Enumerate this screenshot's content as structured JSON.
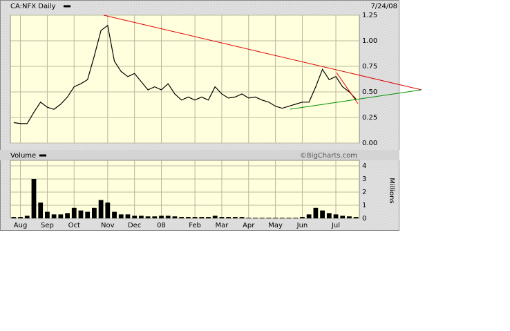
{
  "chart_data": [
    {
      "type": "line",
      "title": "CA:NFX Daily",
      "date": "7/24/08",
      "color": "#000000",
      "values": [
        0.2,
        0.19,
        0.19,
        0.3,
        0.4,
        0.35,
        0.33,
        0.38,
        0.45,
        0.55,
        0.58,
        0.62,
        0.85,
        1.1,
        1.15,
        0.8,
        0.7,
        0.65,
        0.68,
        0.6,
        0.52,
        0.55,
        0.52,
        0.58,
        0.48,
        0.42,
        0.45,
        0.42,
        0.45,
        0.42,
        0.55,
        0.48,
        0.44,
        0.45,
        0.48,
        0.44,
        0.45,
        0.42,
        0.4,
        0.36,
        0.34,
        0.36,
        0.38,
        0.4,
        0.4,
        0.55,
        0.72,
        0.62,
        0.65,
        0.55,
        0.5,
        0.43
      ],
      "ylim": [
        0,
        1.25
      ],
      "yticks": [
        {
          "value": 0,
          "label": "0.00"
        },
        {
          "value": 0.25,
          "label": "0.25"
        },
        {
          "value": 0.5,
          "label": "0.50"
        },
        {
          "value": 0.75,
          "label": "0.75"
        },
        {
          "value": 1,
          "label": "1.00"
        },
        {
          "value": 1.25,
          "label": "1.25"
        }
      ],
      "grid": true
    },
    {
      "type": "bar",
      "title": "Volume",
      "source": "©BigCharts.com",
      "y_label": "Millions",
      "color": "#000000",
      "categories": [
        null,
        "Aug",
        null,
        null,
        null,
        "Sep",
        null,
        null,
        null,
        "Oct",
        null,
        null,
        null,
        null,
        "Nov",
        null,
        null,
        null,
        "Dec",
        null,
        null,
        null,
        "08",
        null,
        null,
        null,
        null,
        "Feb",
        null,
        null,
        null,
        "Mar",
        null,
        null,
        null,
        "Apr",
        null,
        null,
        null,
        "May",
        null,
        null,
        null,
        "Jun",
        null,
        null,
        null,
        null,
        "Jul",
        null,
        null,
        null
      ],
      "values": [
        0.1,
        0.1,
        0.2,
        3.0,
        1.2,
        0.5,
        0.3,
        0.3,
        0.4,
        0.8,
        0.6,
        0.5,
        0.8,
        1.4,
        1.2,
        0.5,
        0.3,
        0.3,
        0.2,
        0.2,
        0.15,
        0.15,
        0.2,
        0.2,
        0.15,
        0.1,
        0.1,
        0.1,
        0.1,
        0.1,
        0.2,
        0.1,
        0.1,
        0.1,
        0.1,
        0.05,
        0.05,
        0.05,
        0.05,
        0.05,
        0.05,
        0.05,
        0.05,
        0.1,
        0.3,
        0.8,
        0.6,
        0.4,
        0.3,
        0.2,
        0.15,
        0.1
      ],
      "ylim": [
        0,
        4
      ],
      "yticks": [
        0,
        1,
        2,
        3,
        4
      ],
      "grid": true
    }
  ]
}
